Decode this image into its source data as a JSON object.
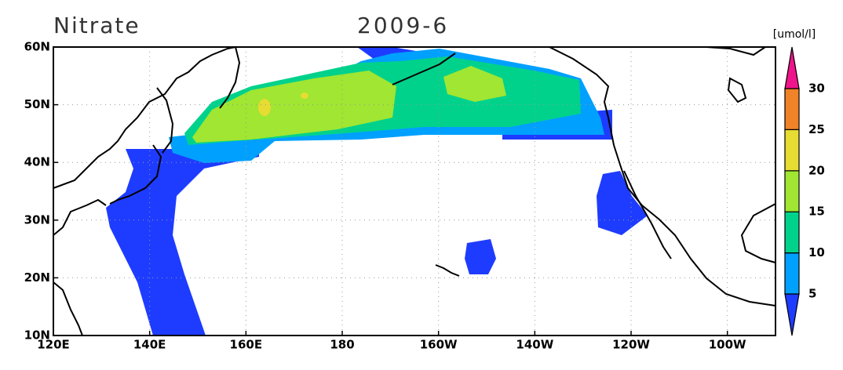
{
  "title": "Nitrate",
  "date": "2009-6",
  "units": "[umol/l]",
  "lon_ticks": [
    "120E",
    "140E",
    "160E",
    "180",
    "160W",
    "140W",
    "120W",
    "100W"
  ],
  "lat_ticks": [
    "10N",
    "20N",
    "30N",
    "40N",
    "50N",
    "60N"
  ],
  "colorbar": {
    "levels": [
      5,
      10,
      15,
      20,
      25,
      30
    ],
    "colors": [
      "#1e3cff",
      "#00a0ff",
      "#00d28c",
      "#a0e632",
      "#e6dc32",
      "#f08228",
      "#f0148c"
    ]
  }
}
